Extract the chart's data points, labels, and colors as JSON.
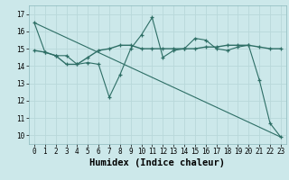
{
  "xlabel": "Humidex (Indice chaleur)",
  "bg_color": "#cce8ea",
  "line_color": "#2d6e65",
  "xlim": [
    -0.5,
    23.5
  ],
  "ylim": [
    9.5,
    17.5
  ],
  "yticks": [
    10,
    11,
    12,
    13,
    14,
    15,
    16,
    17
  ],
  "xticks": [
    0,
    1,
    2,
    3,
    4,
    5,
    6,
    7,
    8,
    9,
    10,
    11,
    12,
    13,
    14,
    15,
    16,
    17,
    18,
    19,
    20,
    21,
    22,
    23
  ],
  "line1_x": [
    0,
    1,
    2,
    3,
    4,
    5,
    6,
    7,
    8,
    9,
    10,
    11,
    12,
    13,
    14,
    15,
    16,
    17,
    18,
    19,
    20,
    21,
    22,
    23
  ],
  "line1_y": [
    16.5,
    14.8,
    14.6,
    14.6,
    14.1,
    14.2,
    14.1,
    12.2,
    13.5,
    15.0,
    15.8,
    16.8,
    14.5,
    14.9,
    15.0,
    15.6,
    15.5,
    15.0,
    14.9,
    15.1,
    15.2,
    13.2,
    10.7,
    9.9
  ],
  "line2_x": [
    0,
    1,
    2,
    3,
    4,
    5,
    6,
    7,
    8,
    9,
    10,
    11,
    12,
    13,
    14,
    15,
    16,
    17,
    18,
    19,
    20,
    21,
    22,
    23
  ],
  "line2_y": [
    14.9,
    14.8,
    14.6,
    14.1,
    14.1,
    14.5,
    14.9,
    15.0,
    15.2,
    15.2,
    15.0,
    15.0,
    15.0,
    15.0,
    15.0,
    15.0,
    15.1,
    15.1,
    15.2,
    15.2,
    15.2,
    15.1,
    15.0,
    15.0
  ],
  "line3_x": [
    0,
    23
  ],
  "line3_y": [
    16.5,
    9.9
  ],
  "grid_color": "#b8d8da",
  "tick_fontsize": 5.5,
  "label_fontsize": 7.5
}
